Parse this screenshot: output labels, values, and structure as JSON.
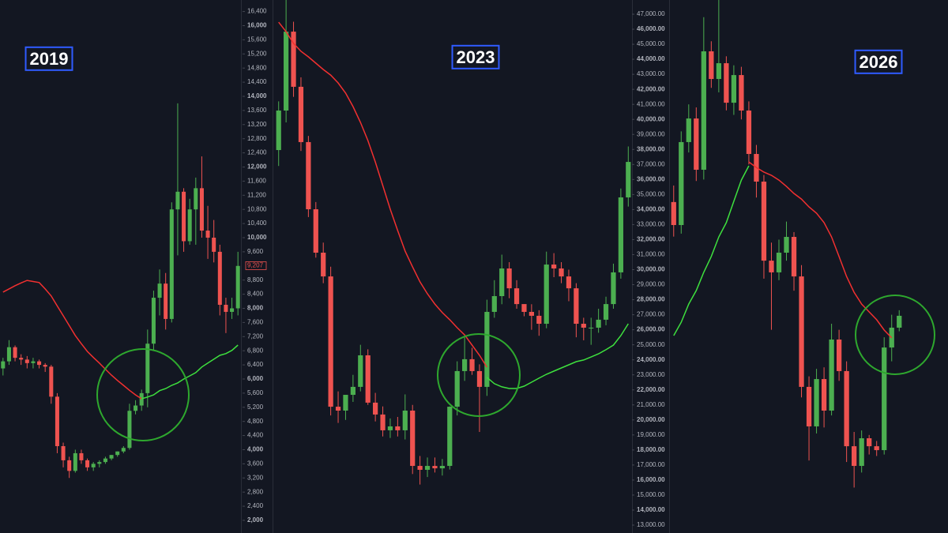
{
  "chart_data": [
    {
      "type": "candlestick",
      "title": "2019",
      "up_color": "#4caf50",
      "down_color": "#ef5350",
      "open": [
        6300,
        6500,
        6900,
        6600,
        6550,
        6450,
        6500,
        6400,
        6350,
        5500,
        4100,
        3700,
        3400,
        3900,
        3700,
        3500,
        3600,
        3650,
        3750,
        3850,
        3950,
        4050,
        5100,
        5250,
        5600,
        7000,
        8300,
        8700,
        7700,
        10800,
        11300,
        9900,
        10800,
        11400,
        10200,
        10000,
        9600,
        8100,
        7900,
        8000
      ],
      "high": [
        6600,
        7100,
        6950,
        6700,
        6650,
        6600,
        6550,
        6450,
        6400,
        5600,
        4200,
        3800,
        4000,
        4000,
        3750,
        3650,
        3700,
        3800,
        3850,
        3950,
        4100,
        5300,
        5400,
        5700,
        7400,
        8500,
        9100,
        9000,
        11000,
        13800,
        11400,
        11100,
        11700,
        12300,
        10900,
        10500,
        9800,
        8300,
        8300,
        9600
      ],
      "low": [
        6100,
        6400,
        6500,
        6400,
        6300,
        6300,
        6300,
        6200,
        5300,
        3900,
        3500,
        3200,
        3350,
        3600,
        3400,
        3400,
        3500,
        3600,
        3700,
        3800,
        3900,
        4000,
        5000,
        5100,
        5200,
        6800,
        7800,
        7400,
        7600,
        9500,
        9600,
        9800,
        9800,
        10000,
        9400,
        9300,
        7800,
        7300,
        7700,
        7800
      ],
      "close": [
        6500,
        6900,
        6600,
        6550,
        6450,
        6500,
        6400,
        6350,
        5500,
        4100,
        3700,
        3400,
        3900,
        3700,
        3500,
        3600,
        3650,
        3750,
        3850,
        3950,
        4050,
        5100,
        5250,
        5600,
        7000,
        8300,
        8700,
        7700,
        10800,
        11300,
        9900,
        10800,
        11400,
        10200,
        10000,
        9600,
        8100,
        7900,
        8000,
        9200
      ],
      "lines": [
        {
          "color": "#f23030",
          "values": [
            8460,
            8550,
            8640,
            8720,
            8790,
            8760,
            8730,
            8550,
            8350,
            8070,
            7790,
            7510,
            7230,
            7000,
            6780,
            6610,
            6450,
            6280,
            6110,
            5960,
            5820,
            5680,
            5550,
            5440,
            null,
            null,
            null,
            null,
            null,
            null,
            null,
            null,
            null,
            null,
            null,
            null,
            null,
            null,
            null,
            null
          ]
        },
        {
          "color": "#3ee03e",
          "values": [
            null,
            null,
            null,
            null,
            null,
            null,
            null,
            null,
            null,
            null,
            null,
            null,
            null,
            null,
            null,
            null,
            null,
            null,
            null,
            null,
            null,
            null,
            null,
            5440,
            5490,
            5550,
            5670,
            5730,
            5820,
            5890,
            6000,
            6090,
            6180,
            6340,
            6450,
            6560,
            6670,
            6720,
            6810,
            6960
          ]
        }
      ],
      "price_label": {
        "value": 9207,
        "label": "9,207"
      },
      "ylim": [
        1642,
        16726
      ],
      "yticks": [
        {
          "value": 2000,
          "label": "2,000"
        },
        {
          "value": 2400,
          "label": "2,400"
        },
        {
          "value": 2800,
          "label": "2,800"
        },
        {
          "value": 3200,
          "label": "3,200"
        },
        {
          "value": 3600,
          "label": "3,600"
        },
        {
          "value": 4000,
          "label": "4,000"
        },
        {
          "value": 4400,
          "label": "4,400"
        },
        {
          "value": 4800,
          "label": "4,800"
        },
        {
          "value": 5200,
          "label": "5,200"
        },
        {
          "value": 5600,
          "label": "5,600"
        },
        {
          "value": 6000,
          "label": "6,000"
        },
        {
          "value": 6400,
          "label": "6,400"
        },
        {
          "value": 6800,
          "label": "6,800"
        },
        {
          "value": 7200,
          "label": "7,200"
        },
        {
          "value": 7600,
          "label": "7,600"
        },
        {
          "value": 8000,
          "label": "8,000"
        },
        {
          "value": 8400,
          "label": "8,400"
        },
        {
          "value": 8800,
          "label": "8,800"
        },
        {
          "value": 9600,
          "label": "9,600"
        },
        {
          "value": 10000,
          "label": "10,000"
        },
        {
          "value": 10400,
          "label": "10,400"
        },
        {
          "value": 10800,
          "label": "10,800"
        },
        {
          "value": 11200,
          "label": "11,200"
        },
        {
          "value": 11600,
          "label": "11,600"
        },
        {
          "value": 12000,
          "label": "12,000"
        },
        {
          "value": 12400,
          "label": "12,400"
        },
        {
          "value": 12800,
          "label": "12,800"
        },
        {
          "value": 13200,
          "label": "13,200"
        },
        {
          "value": 13600,
          "label": "13,600"
        },
        {
          "value": 14000,
          "label": "14,000"
        },
        {
          "value": 14400,
          "label": "14,400"
        },
        {
          "value": 14800,
          "label": "14,800"
        },
        {
          "value": 15200,
          "label": "15,200"
        },
        {
          "value": 15600,
          "label": "15,600"
        },
        {
          "value": 16000,
          "label": "16,000"
        },
        {
          "value": 16400,
          "label": "16,400"
        }
      ]
    },
    {
      "type": "candlestick",
      "title": "2023",
      "up_color": "#4caf50",
      "down_color": "#ef5350",
      "open": [
        37960,
        40590,
        45840,
        42170,
        38490,
        34020,
        31130,
        29550,
        20880,
        20620,
        21670,
        22200,
        24300,
        21150,
        20360,
        19310,
        19570,
        19310,
        20620,
        16940,
        16680,
        16940,
        16780,
        16940,
        20880,
        23250,
        24040,
        23250,
        22200,
        27190,
        28240,
        30080,
        28760,
        27710,
        27190,
        26930,
        26400,
        30340,
        30080,
        29550,
        28760,
        26400,
        26140,
        26140,
        26670,
        27710,
        29820,
        34810
      ],
      "high": [
        41200,
        48000,
        46500,
        42800,
        38900,
        34500,
        31800,
        30200,
        21900,
        21600,
        23000,
        25000,
        24700,
        21800,
        20900,
        20100,
        20200,
        21700,
        21000,
        17600,
        17500,
        17500,
        17400,
        20900,
        23900,
        25500,
        24800,
        23700,
        28000,
        29300,
        31000,
        30500,
        29300,
        27700,
        27700,
        27300,
        31200,
        31100,
        30500,
        30000,
        29100,
        26800,
        26800,
        27400,
        28200,
        30400,
        35400,
        38200
      ],
      "low": [
        36900,
        39800,
        41500,
        37900,
        33500,
        30800,
        29100,
        20300,
        19800,
        20000,
        21200,
        21900,
        21000,
        19900,
        18900,
        18800,
        18900,
        18700,
        16400,
        15700,
        16200,
        16500,
        16300,
        16700,
        20300,
        22600,
        23000,
        19200,
        21600,
        26800,
        27700,
        28100,
        27400,
        26900,
        26000,
        25600,
        26100,
        29500,
        29100,
        27900,
        25500,
        25300,
        25000,
        25800,
        26300,
        27400,
        29400,
        34200
      ],
      "close": [
        40590,
        45840,
        42170,
        38490,
        34020,
        31130,
        29550,
        20880,
        20620,
        21670,
        22200,
        24300,
        21150,
        20360,
        19310,
        19570,
        19310,
        20620,
        16940,
        16680,
        16940,
        16780,
        16940,
        20880,
        23250,
        24040,
        23250,
        22200,
        27190,
        28240,
        30080,
        28760,
        27710,
        27190,
        26930,
        26400,
        30340,
        30080,
        29550,
        28760,
        26400,
        26140,
        26140,
        26670,
        27710,
        29820,
        34810,
        37170
      ],
      "lines": [
        {
          "color": "#f23030",
          "values": [
            46470,
            45840,
            45060,
            44530,
            44160,
            43740,
            43320,
            42950,
            42430,
            41750,
            40850,
            39800,
            38590,
            37170,
            35600,
            34020,
            32600,
            31240,
            30190,
            29190,
            28400,
            27710,
            27140,
            26670,
            26140,
            25660,
            24980,
            24300,
            23510,
            null,
            null,
            null,
            null,
            null,
            null,
            null,
            null,
            null,
            null,
            null,
            null,
            null,
            null,
            null,
            null,
            null,
            null,
            null
          ]
        },
        {
          "color": "#3ee03e",
          "values": [
            null,
            null,
            null,
            null,
            null,
            null,
            null,
            null,
            null,
            null,
            null,
            null,
            null,
            null,
            null,
            null,
            null,
            null,
            null,
            null,
            null,
            null,
            null,
            null,
            null,
            null,
            null,
            null,
            22830,
            22410,
            22200,
            22090,
            22090,
            22250,
            22510,
            22780,
            23040,
            23250,
            23460,
            23670,
            23880,
            23990,
            24190,
            24400,
            24670,
            24980,
            25610,
            26400
          ]
        }
      ],
      "ylim": [
        12475,
        47946
      ],
      "yticks": [
        {
          "value": 13000,
          "label": "13,000.00"
        },
        {
          "value": 14000,
          "label": "14,000.00"
        },
        {
          "value": 15000,
          "label": "15,000.00"
        },
        {
          "value": 16000,
          "label": "16,000.00"
        },
        {
          "value": 17000,
          "label": "17,000.00"
        },
        {
          "value": 18000,
          "label": "18,000.00"
        },
        {
          "value": 19000,
          "label": "19,000.00"
        },
        {
          "value": 20000,
          "label": "20,000.00"
        },
        {
          "value": 21000,
          "label": "21,000.00"
        },
        {
          "value": 22000,
          "label": "22,000.00"
        },
        {
          "value": 23000,
          "label": "23,000.00"
        },
        {
          "value": 24000,
          "label": "24,000.00"
        },
        {
          "value": 25000,
          "label": "25,000.00"
        },
        {
          "value": 26000,
          "label": "26,000.00"
        },
        {
          "value": 27000,
          "label": "27,000.00"
        },
        {
          "value": 28000,
          "label": "28,000.00"
        },
        {
          "value": 29000,
          "label": "29,000.00"
        },
        {
          "value": 30000,
          "label": "30,000.00"
        },
        {
          "value": 31000,
          "label": "31,000.00"
        },
        {
          "value": 32000,
          "label": "32,000.00"
        },
        {
          "value": 33000,
          "label": "33,000.00"
        },
        {
          "value": 34000,
          "label": "34,000.00"
        },
        {
          "value": 35000,
          "label": "35,000.00"
        },
        {
          "value": 36000,
          "label": "36,000.00"
        },
        {
          "value": 37000,
          "label": "37,000.00"
        },
        {
          "value": 38000,
          "label": "38,000.00"
        },
        {
          "value": 39000,
          "label": "39,000.00"
        },
        {
          "value": 40000,
          "label": "40,000.00"
        },
        {
          "value": 41000,
          "label": "41,000.00"
        },
        {
          "value": 42000,
          "label": "42,000.00"
        },
        {
          "value": 43000,
          "label": "43,000.00"
        },
        {
          "value": 44000,
          "label": "44,000.00"
        },
        {
          "value": 45000,
          "label": "45,000.00"
        },
        {
          "value": 46000,
          "label": "46,000.00"
        },
        {
          "value": 47000,
          "label": "47,000.00"
        }
      ]
    },
    {
      "type": "candlestick",
      "title": "2026",
      "up_color": "#4caf50",
      "down_color": "#ef5350",
      "open": [
        34500,
        32970,
        38490,
        40060,
        36650,
        44530,
        42690,
        43740,
        41110,
        42950,
        40590,
        37700,
        35860,
        30600,
        29820,
        31130,
        32180,
        29550,
        22200,
        19570,
        22720,
        20620,
        25350,
        23250,
        18250,
        16940,
        18780,
        18250,
        17990,
        24820,
        26140
      ],
      "high": [
        35600,
        39200,
        41000,
        40800,
        46800,
        45200,
        48000,
        44200,
        43600,
        43500,
        41200,
        38300,
        36300,
        31800,
        32000,
        33200,
        32500,
        30300,
        22900,
        23400,
        23500,
        26400,
        26000,
        23900,
        19200,
        19300,
        19000,
        18600,
        25500,
        27000,
        27300
      ],
      "low": [
        32200,
        32400,
        37800,
        35900,
        36000,
        42100,
        41800,
        40600,
        40300,
        40000,
        37000,
        34800,
        29400,
        26000,
        29300,
        30600,
        28600,
        21500,
        17300,
        19100,
        19500,
        20300,
        22600,
        17200,
        15500,
        16500,
        17700,
        17600,
        17700,
        23900,
        25900
      ],
      "close": [
        32970,
        38490,
        40060,
        36650,
        44530,
        42690,
        43740,
        41110,
        42950,
        40590,
        37700,
        35860,
        30600,
        29820,
        31130,
        32180,
        29550,
        22200,
        19570,
        22720,
        20620,
        25350,
        23250,
        18250,
        16940,
        18780,
        18250,
        17990,
        24820,
        26140,
        26930
      ],
      "lines": [
        {
          "color": "#f23030",
          "values": [
            null,
            null,
            null,
            null,
            null,
            null,
            null,
            null,
            null,
            null,
            37170,
            36800,
            36490,
            36280,
            35960,
            35540,
            35070,
            34700,
            34180,
            33760,
            33130,
            32180,
            30870,
            29550,
            28500,
            27710,
            27190,
            26670,
            25980,
            25460,
            null
          ]
        },
        {
          "color": "#3ee03e",
          "values": [
            25610,
            26500,
            27710,
            28610,
            29820,
            30870,
            32180,
            33130,
            34550,
            35960,
            36910,
            null,
            null,
            null,
            null,
            null,
            null,
            null,
            null,
            null,
            null,
            null,
            null,
            null,
            null,
            null,
            null,
            null,
            null,
            null,
            null
          ]
        }
      ],
      "ylim": [
        12475,
        47946
      ]
    }
  ]
}
